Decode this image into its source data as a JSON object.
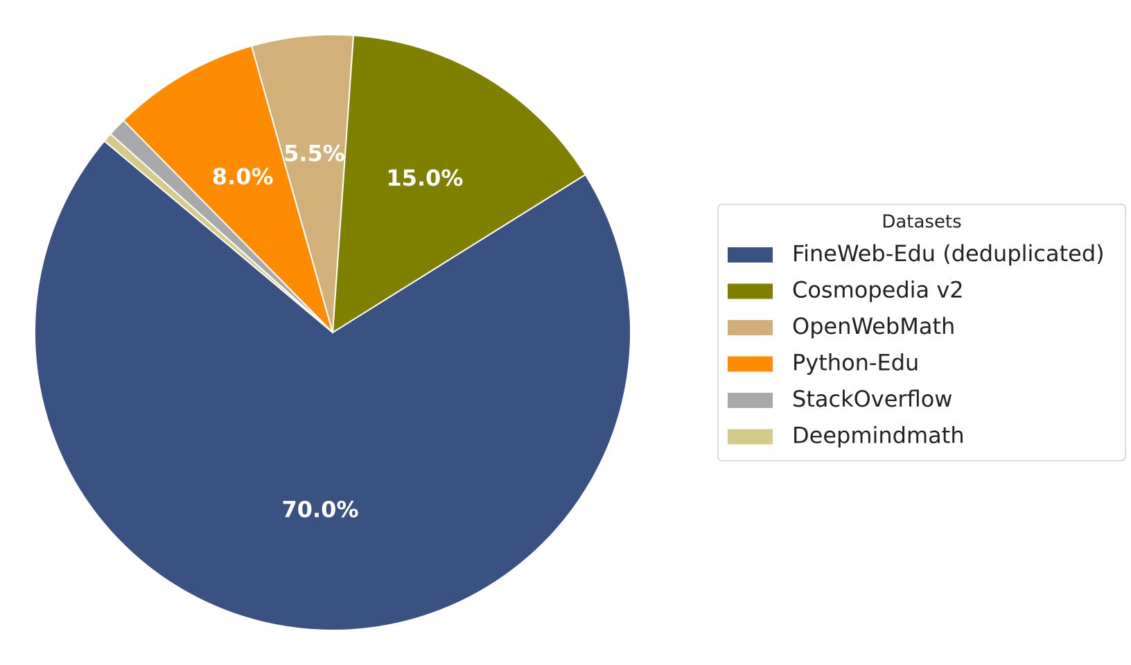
{
  "chart_data": {
    "type": "pie",
    "categories": [
      "FineWeb-Edu (deduplicated)",
      "Cosmopedia v2",
      "OpenWebMath",
      "Python-Edu",
      "StackOverflow",
      "Deepmindmath"
    ],
    "values": [
      70.0,
      15.0,
      5.5,
      8.0,
      1.0,
      0.5
    ],
    "value_labels": [
      "70.0%",
      "15.0%",
      "5.5%",
      "8.0%",
      null,
      null
    ],
    "colors": [
      "#3a5281",
      "#808000",
      "#d2b07a",
      "#ff8c00",
      "#a9a9a9",
      "#d4ca8a"
    ],
    "start_angle": 140,
    "legend_title": "Datasets",
    "legend": "right"
  }
}
